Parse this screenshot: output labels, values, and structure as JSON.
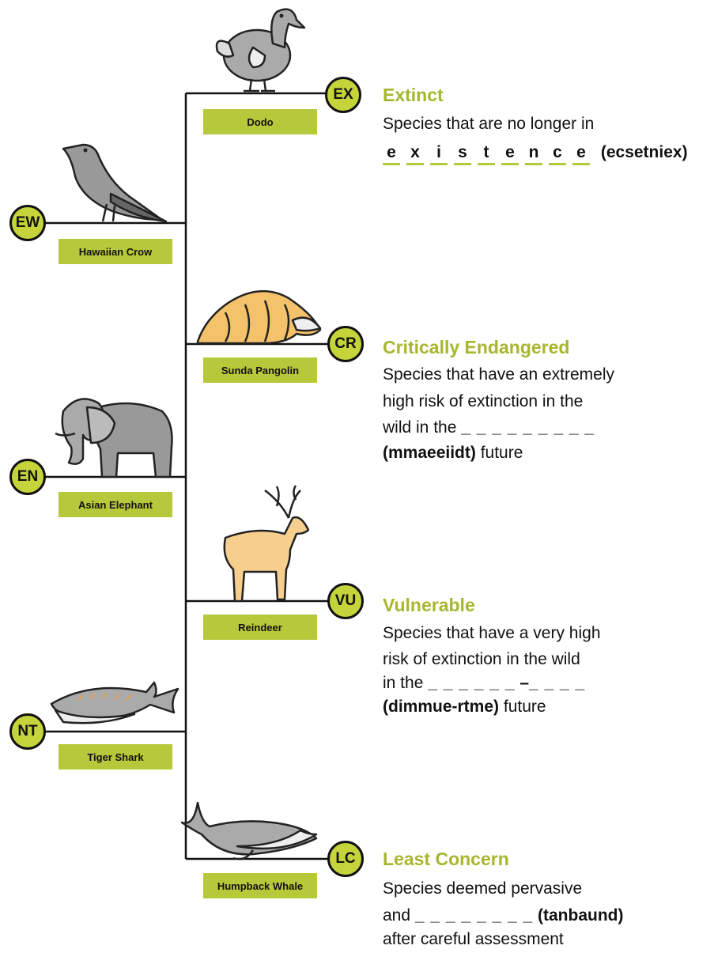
{
  "levels": [
    {
      "code": "EX",
      "animal": "Dodo"
    },
    {
      "code": "EW",
      "animal": "Hawaiian Crow"
    },
    {
      "code": "CR",
      "animal": "Sunda Pangolin"
    },
    {
      "code": "EN",
      "animal": "Asian Elephant"
    },
    {
      "code": "VU",
      "animal": "Reindeer"
    },
    {
      "code": "NT",
      "animal": "Tiger Shark"
    },
    {
      "code": "LC",
      "animal": "Humpback Whale"
    }
  ],
  "descriptions": [
    {
      "title": "Extinct",
      "lines": [
        "Species that are no longer in"
      ],
      "answer": [
        "e",
        "x",
        "i",
        "s",
        "t",
        "e",
        "n",
        "c",
        "e"
      ],
      "hint": "(ecsetniex)"
    },
    {
      "title": "Critically Endangered",
      "lines": [
        "Species that have an extremely",
        "high risk of extinction in the",
        "wild in the"
      ],
      "blank": "_ _ _ _ _ _ _ _ _",
      "hint": "(mmaeeiidt)",
      "after": "future"
    },
    {
      "title": "Vulnerable",
      "lines": [
        "Species that have a very high",
        "risk of extinction in the wild",
        "in the"
      ],
      "blank": "_ _ _ _ _ _",
      "dash": "–",
      "blank2": "_ _ _ _",
      "hint": "(dimmue-rtme)",
      "after": "future"
    },
    {
      "title": "Least Concern",
      "lines": [
        "Species deemed pervasive",
        "and"
      ],
      "blank": "_ _ _ _ _ _ _ _",
      "hint": "(tanbaund)",
      "after": "after careful assessment"
    }
  ]
}
